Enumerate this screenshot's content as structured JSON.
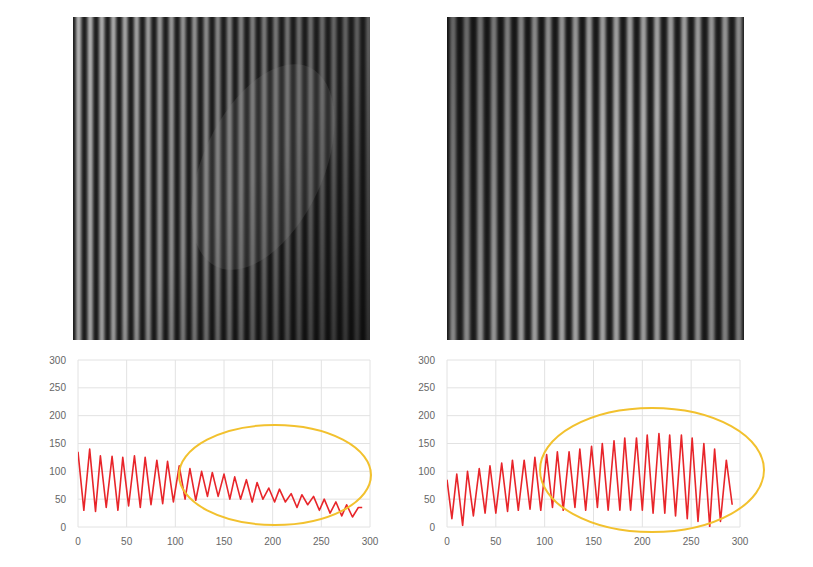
{
  "chart_data": [
    {
      "type": "line",
      "color": "#e8252a",
      "grid": true,
      "xlim": [
        0,
        300
      ],
      "xticks": [
        0,
        50,
        100,
        150,
        200,
        250,
        300
      ],
      "ylim": [
        0,
        300
      ],
      "yticks": [
        0,
        50,
        100,
        150,
        200,
        250,
        300
      ],
      "x": [
        0,
        6,
        12,
        18,
        23,
        29,
        35,
        41,
        46,
        52,
        58,
        64,
        69,
        75,
        81,
        87,
        92,
        98,
        104,
        110,
        115,
        121,
        127,
        133,
        138,
        144,
        150,
        156,
        161,
        167,
        173,
        179,
        184,
        190,
        196,
        202,
        207,
        213,
        219,
        225,
        230,
        236,
        242,
        248,
        253,
        259,
        265,
        271,
        276,
        282,
        288,
        292
      ],
      "values": [
        135,
        30,
        140,
        28,
        128,
        35,
        127,
        30,
        125,
        38,
        128,
        35,
        125,
        40,
        120,
        42,
        118,
        45,
        110,
        50,
        105,
        48,
        100,
        55,
        98,
        55,
        95,
        50,
        90,
        50,
        85,
        45,
        80,
        50,
        70,
        45,
        68,
        45,
        60,
        35,
        58,
        40,
        55,
        30,
        50,
        25,
        45,
        20,
        40,
        18,
        35,
        35
      ]
    },
    {
      "type": "line",
      "color": "#e8252a",
      "grid": true,
      "xlim": [
        0,
        300
      ],
      "xticks": [
        0,
        50,
        100,
        150,
        200,
        250,
        300
      ],
      "ylim": [
        0,
        300
      ],
      "yticks": [
        0,
        50,
        100,
        150,
        200,
        250,
        300
      ],
      "x": [
        0,
        5,
        10,
        16,
        21,
        27,
        33,
        39,
        44,
        50,
        56,
        62,
        67,
        73,
        79,
        85,
        90,
        96,
        102,
        108,
        113,
        119,
        125,
        131,
        136,
        142,
        148,
        154,
        159,
        165,
        171,
        177,
        182,
        188,
        194,
        200,
        205,
        211,
        217,
        223,
        228,
        234,
        240,
        246,
        251,
        257,
        263,
        269,
        274,
        280,
        286,
        292
      ],
      "values": [
        85,
        15,
        95,
        3,
        100,
        20,
        105,
        25,
        110,
        25,
        115,
        28,
        120,
        30,
        120,
        32,
        125,
        30,
        130,
        35,
        135,
        30,
        135,
        35,
        140,
        30,
        145,
        35,
        150,
        30,
        155,
        30,
        160,
        30,
        160,
        30,
        165,
        25,
        168,
        25,
        165,
        20,
        165,
        15,
        160,
        10,
        150,
        0,
        140,
        10,
        120,
        40
      ]
    }
  ]
}
